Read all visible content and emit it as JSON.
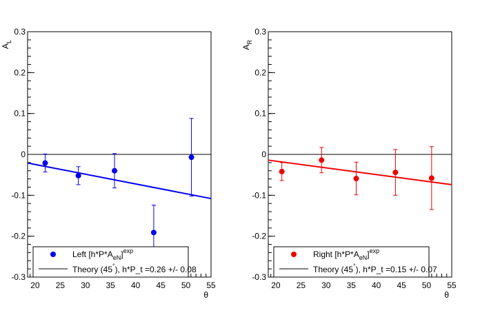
{
  "chart_data": [
    {
      "type": "scatter",
      "ylabel_main": "A",
      "ylabel_sub": "L",
      "xlabel": "θ",
      "xlim": [
        18.5,
        55
      ],
      "ylim": [
        -0.3,
        0.3
      ],
      "x_ticks": [
        20,
        25,
        30,
        35,
        40,
        45,
        50,
        55
      ],
      "x_tick_labels": [
        "20",
        "25",
        "30",
        "35",
        "40",
        "45",
        "50",
        "55"
      ],
      "y_ticks": [
        -0.3,
        -0.2,
        -0.1,
        0,
        0.1,
        0.2,
        0.3
      ],
      "y_tick_labels": [
        "-0.3",
        "-0.2",
        "-0.1",
        "0",
        "0.1",
        "0.2",
        "0.3"
      ],
      "color": "#0000ee",
      "points": [
        {
          "x": 22,
          "y": -0.021,
          "err": 0.022
        },
        {
          "x": 28.6,
          "y": -0.052,
          "err": 0.022
        },
        {
          "x": 35.8,
          "y": -0.04,
          "err": 0.042
        },
        {
          "x": 43.6,
          "y": -0.191,
          "err": 0.067
        },
        {
          "x": 51.1,
          "y": -0.007,
          "err": 0.095
        }
      ],
      "theory_line": {
        "x": [
          18.5,
          55
        ],
        "y": [
          -0.021,
          -0.108
        ]
      },
      "legend": {
        "points_label_prefix": "Left [h*P*A",
        "points_label_sub": "eN",
        "points_label_bracket": "]",
        "points_label_sup": "exp",
        "line_label_prefix": "Theory (45",
        "line_label_sup": "°",
        "line_label_suffix": "), h*P_t =0.26 +/- 0.08"
      }
    },
    {
      "type": "scatter",
      "ylabel_main": "A",
      "ylabel_sub": "R",
      "xlabel": "θ",
      "xlim": [
        18.5,
        55
      ],
      "ylim": [
        -0.3,
        0.3
      ],
      "x_ticks": [
        20,
        25,
        30,
        35,
        40,
        45,
        50,
        55
      ],
      "x_tick_labels": [
        "20",
        "25",
        "30",
        "35",
        "40",
        "45",
        "50",
        "55"
      ],
      "y_ticks": [
        -0.3,
        -0.2,
        -0.1,
        0,
        0.1,
        0.2,
        0.3
      ],
      "y_tick_labels": [
        "-0.3",
        "-0.2",
        "-0.1",
        "0",
        "0.1",
        "0.2",
        "0.3"
      ],
      "color": "#ee0000",
      "points": [
        {
          "x": 21.2,
          "y": -0.042,
          "err": 0.022
        },
        {
          "x": 29.1,
          "y": -0.014,
          "err": 0.031
        },
        {
          "x": 36.0,
          "y": -0.059,
          "err": 0.04
        },
        {
          "x": 43.8,
          "y": -0.044,
          "err": 0.056
        },
        {
          "x": 51.0,
          "y": -0.058,
          "err": 0.077
        }
      ],
      "theory_line": {
        "x": [
          18.5,
          55
        ],
        "y": [
          -0.014,
          -0.074
        ]
      },
      "legend": {
        "points_label_prefix": "Right [h*P*A",
        "points_label_sub": "eN",
        "points_label_bracket": "]",
        "points_label_sup": "exp",
        "line_label_prefix": "Theory (45",
        "line_label_sup": "°",
        "line_label_suffix": "), h*P_t =0.15 +/- 0.07"
      }
    }
  ]
}
